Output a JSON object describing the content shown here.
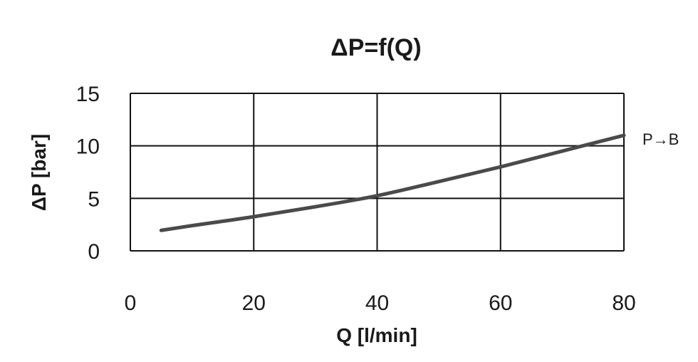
{
  "chart_data": {
    "type": "line",
    "title": "ΔP=f(Q)",
    "xlabel": "Q [l/min]",
    "ylabel": "ΔP [bar]",
    "xlim": [
      0,
      80
    ],
    "ylim": [
      0,
      15
    ],
    "xticks": [
      "0",
      "20",
      "40",
      "60",
      "80"
    ],
    "yticks": [
      "0",
      "5",
      "10",
      "15"
    ],
    "grid": true,
    "series": [
      {
        "name": "P→B",
        "color": "#4a4a4a",
        "x": [
          5,
          10,
          20,
          30,
          40,
          50,
          60,
          70,
          80
        ],
        "y": [
          1.95,
          2.4,
          3.25,
          4.2,
          5.25,
          6.6,
          8.0,
          9.5,
          11.0
        ]
      }
    ]
  }
}
